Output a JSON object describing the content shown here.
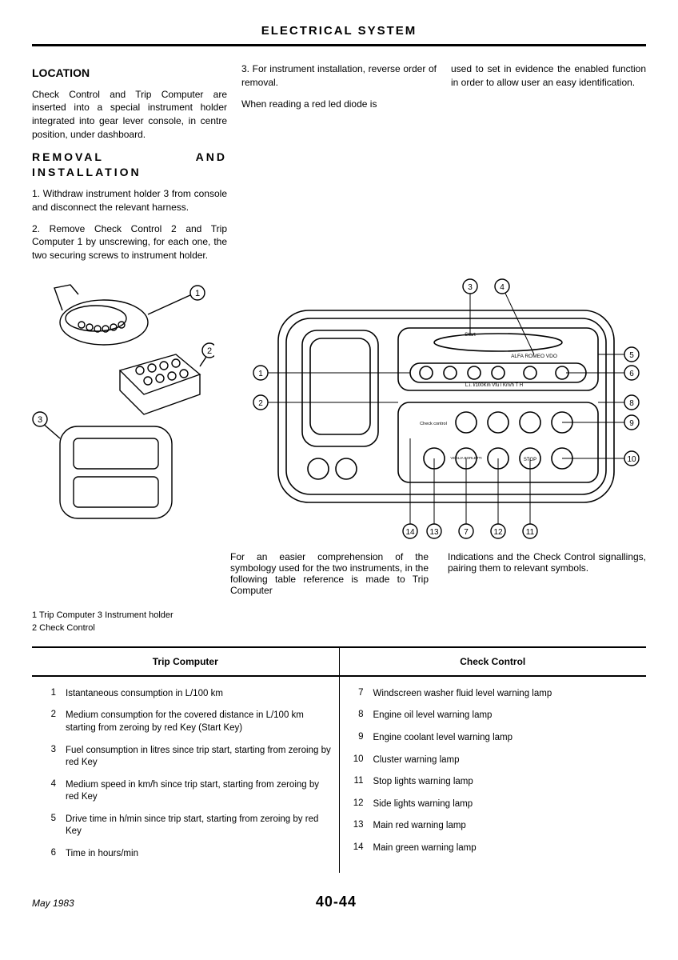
{
  "header": {
    "title": "ELECTRICAL SYSTEM"
  },
  "sections": {
    "location_h": "LOCATION",
    "location_p": "Check Control and Trip Computer are inserted into a special instrument holder integrated into gear lever console, in centre position, under dashboard.",
    "removal_h": "REMOVAL AND INSTALLATION",
    "removal_1": "1.   Withdraw instrument holder 3 from console and disconnect the relevant harness.",
    "removal_2": "2.   Remove Check Control 2 and Trip Computer 1 by unscrewing, for each one, the two securing screws to instrument holder.",
    "removal_3": "3.   For instrument installation, reverse order of removal.",
    "removal_4": "When reading a red led diode is",
    "removal_5": "used to set in evidence the enabled function in order to allow user an easy identification.",
    "symbology_1": "For an easier comprehension of the symbology used for the two instruments, in the following table reference is made to Trip Computer",
    "symbology_2": "Indications and the Check Control signallings, pairing them to relevant symbols."
  },
  "fig1_labels": {
    "a": "1",
    "b": "2",
    "c": "3"
  },
  "fig2": {
    "callouts": {
      "c1": "1",
      "c2": "2",
      "c3": "3",
      "c4": "4",
      "c5": "5",
      "c6": "6",
      "c7": "7",
      "c8": "8",
      "c9": "9",
      "c10": "10",
      "c11": "11",
      "c12": "12",
      "c13": "13",
      "c14": "14"
    },
    "text": {
      "start": "Start",
      "brand": "ALFA ROMEO  VDO",
      "units": "L.i.   l/100Km   Vfu l   Km/h    T      H",
      "cc": "Check control",
      "vb": "VEGLIA BORLETTI",
      "stop": "STOP"
    }
  },
  "legend": {
    "l1": "1 Trip Computer 3 Instrument holder",
    "l2": "2 Check Control"
  },
  "table": {
    "head_left": "Trip Computer",
    "head_right": "Check Control",
    "left": [
      {
        "n": "1",
        "t": "Istantaneous consumption in L/100 km"
      },
      {
        "n": "2",
        "t": "Medium consumption for the covered distance in L/100 km starting from zeroing by red Key (Start Key)"
      },
      {
        "n": "3",
        "t": "Fuel consumption in litres since trip start, starting from zeroing by red Key"
      },
      {
        "n": "4",
        "t": "Medium speed in km/h since trip start, starting from zeroing by red Key"
      },
      {
        "n": "5",
        "t": "Drive time in h/min since trip start, starting from zeroing by red Key"
      },
      {
        "n": "6",
        "t": "Time in hours/min"
      }
    ],
    "right": [
      {
        "n": "7",
        "t": "Windscreen washer fluid level warning lamp"
      },
      {
        "n": "8",
        "t": "Engine oil level warning lamp"
      },
      {
        "n": "9",
        "t": "Engine coolant level warning lamp"
      },
      {
        "n": "10",
        "t": "Cluster warning lamp"
      },
      {
        "n": "11",
        "t": "Stop lights warning lamp"
      },
      {
        "n": "12",
        "t": "Side lights warning lamp"
      },
      {
        "n": "13",
        "t": "Main red warning lamp"
      },
      {
        "n": "14",
        "t": "Main green warning lamp"
      }
    ]
  },
  "footer": {
    "date": "May 1983",
    "page": "40-44"
  },
  "style": {
    "text_color": "#000000",
    "background_color": "#ffffff",
    "rule_color": "#000000",
    "diagram_stroke": "#000000",
    "diagram_fill": "#ffffff",
    "font_family": "Arial, Helvetica, sans-serif",
    "body_font_size_pt": 9,
    "heading_font_size_pt": 11,
    "title_font_size_pt": 12,
    "callout_radius": 7,
    "callout_fontsize": 9,
    "line_width": 1.4
  }
}
